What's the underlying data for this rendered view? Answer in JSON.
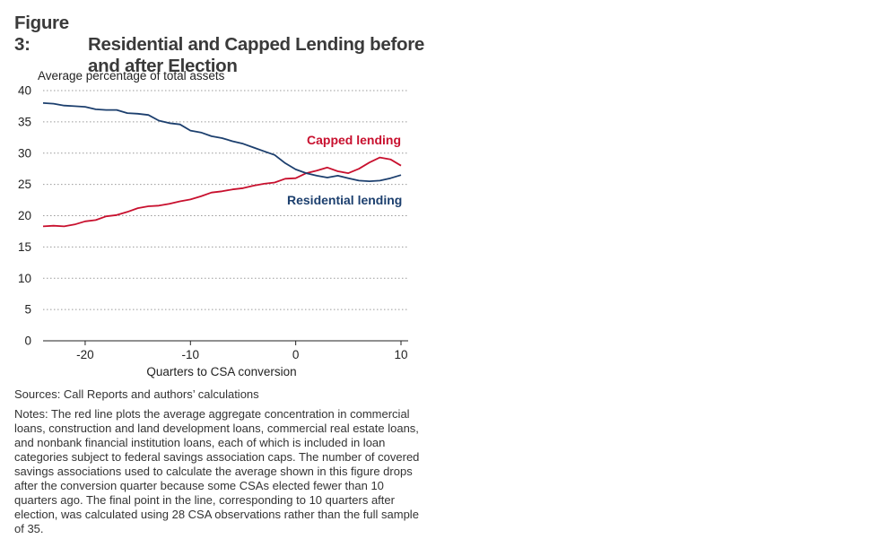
{
  "figure": {
    "number": "Figure 3:",
    "title_line1": "Residential and Capped Lending before",
    "title_line2": "and after Election"
  },
  "chart_data": {
    "type": "line",
    "title": "Residential and Capped Lending before and after Election",
    "ylabel": "Average percentage of total assets",
    "xlabel": "Quarters to CSA conversion",
    "xlim": [
      -24,
      10
    ],
    "ylim": [
      0,
      40
    ],
    "x_ticks": [
      -20,
      -10,
      0,
      10
    ],
    "y_ticks": [
      0,
      5,
      10,
      15,
      20,
      25,
      30,
      35,
      40
    ],
    "grid": "horizontal dotted",
    "x": [
      -24,
      -23,
      -22,
      -21,
      -20,
      -19,
      -18,
      -17,
      -16,
      -15,
      -14,
      -13,
      -12,
      -11,
      -10,
      -9,
      -8,
      -7,
      -6,
      -5,
      -4,
      -3,
      -2,
      -1,
      0,
      1,
      2,
      3,
      4,
      5,
      6,
      7,
      8,
      9,
      10
    ],
    "series": [
      {
        "name": "Capped lending",
        "color": "#c8102e",
        "values": [
          18.3,
          18.4,
          18.3,
          18.6,
          19.1,
          19.3,
          19.9,
          20.1,
          20.6,
          21.2,
          21.5,
          21.6,
          21.9,
          22.3,
          22.6,
          23.1,
          23.7,
          23.9,
          24.2,
          24.4,
          24.8,
          25.1,
          25.3,
          25.9,
          26.0,
          26.8,
          27.2,
          27.7,
          27.1,
          26.8,
          27.5,
          28.5,
          29.3,
          29.0,
          28.0
        ]
      },
      {
        "name": "Residential lending",
        "color": "#1c3f6e",
        "values": [
          38.0,
          37.9,
          37.6,
          37.5,
          37.4,
          37.0,
          36.9,
          36.9,
          36.4,
          36.3,
          36.1,
          35.2,
          34.8,
          34.6,
          33.6,
          33.3,
          32.7,
          32.4,
          31.9,
          31.5,
          30.9,
          30.3,
          29.7,
          28.4,
          27.4,
          26.8,
          26.4,
          26.1,
          26.4,
          26.0,
          25.6,
          25.5,
          25.6,
          26.0,
          26.5
        ]
      }
    ]
  },
  "footer": {
    "sources": "Sources: Call Reports and authors’ calculations",
    "notes": "Notes: The red line plots the average aggregate concentration in commercial loans, construction and land development loans, commercial real estate loans, and nonbank financial institution loans, each of which is included in loan categories subject to federal savings association caps. The number of covered savings associations used to calculate the average shown in this figure drops after the conversion quarter because some CSAs elected fewer than 10 quarters ago. The final point in the line, corresponding to 10 quarters after election, was calculated using 28 CSA observations rather than the full sample of 35."
  }
}
